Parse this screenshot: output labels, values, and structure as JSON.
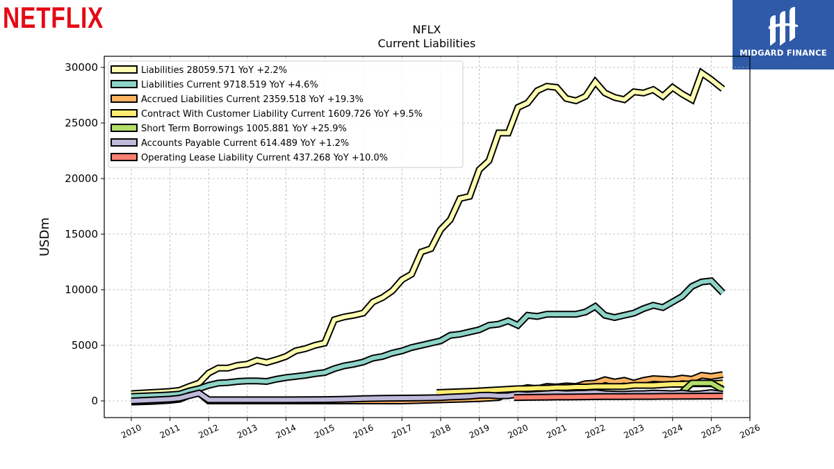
{
  "branding": {
    "company_logo_text": "NETFLIX",
    "publisher_logo_text": "MIDGARD FINANCE",
    "company_logo_color": "#e50914",
    "publisher_logo_bg": "#2f5aa8"
  },
  "chart_data": {
    "type": "area",
    "title": "NFLX",
    "subtitle": "Current  Liabilities",
    "ylabel": "USDm",
    "xlabel": "",
    "xlim": [
      2009.3,
      2026.0
    ],
    "ylim": [
      -1500,
      31000
    ],
    "x_ticks": [
      "2010",
      "2011",
      "2012",
      "2013",
      "2014",
      "2015",
      "2016",
      "2017",
      "2018",
      "2019",
      "2020",
      "2021",
      "2022",
      "2023",
      "2024",
      "2025",
      "2026"
    ],
    "y_ticks": [
      "0",
      "5000",
      "10000",
      "15000",
      "20000",
      "25000",
      "30000"
    ],
    "grid": true,
    "legend_position": "top-left",
    "series": [
      {
        "name": "Liabilities  28059.571 YoY +2.2%",
        "color": "#ffffb3",
        "points": [
          [
            2010.0,
            650
          ],
          [
            2010.5,
            750
          ],
          [
            2010.75,
            800
          ],
          [
            2011.0,
            850
          ],
          [
            2011.25,
            950
          ],
          [
            2011.5,
            1300
          ],
          [
            2011.75,
            1600
          ],
          [
            2012.0,
            2500
          ],
          [
            2012.25,
            2950
          ],
          [
            2012.5,
            2950
          ],
          [
            2012.75,
            3200
          ],
          [
            2013.0,
            3300
          ],
          [
            2013.25,
            3650
          ],
          [
            2013.5,
            3450
          ],
          [
            2013.75,
            3700
          ],
          [
            2014.0,
            4000
          ],
          [
            2014.25,
            4500
          ],
          [
            2014.5,
            4700
          ],
          [
            2014.75,
            5000
          ],
          [
            2015.0,
            5200
          ],
          [
            2015.25,
            7300
          ],
          [
            2015.5,
            7550
          ],
          [
            2015.75,
            7700
          ],
          [
            2016.0,
            7900
          ],
          [
            2016.25,
            8900
          ],
          [
            2016.5,
            9300
          ],
          [
            2016.75,
            9900
          ],
          [
            2017.0,
            10900
          ],
          [
            2017.25,
            11400
          ],
          [
            2017.5,
            13400
          ],
          [
            2017.75,
            13700
          ],
          [
            2018.0,
            15400
          ],
          [
            2018.25,
            16300
          ],
          [
            2018.5,
            18200
          ],
          [
            2018.75,
            18400
          ],
          [
            2019.0,
            20800
          ],
          [
            2019.25,
            21600
          ],
          [
            2019.5,
            24100
          ],
          [
            2019.75,
            24100
          ],
          [
            2020.0,
            26400
          ],
          [
            2020.25,
            26800
          ],
          [
            2020.5,
            27900
          ],
          [
            2020.75,
            28300
          ],
          [
            2021.0,
            28200
          ],
          [
            2021.25,
            27200
          ],
          [
            2021.5,
            27000
          ],
          [
            2021.75,
            27400
          ],
          [
            2022.0,
            28700
          ],
          [
            2022.25,
            27700
          ],
          [
            2022.5,
            27300
          ],
          [
            2022.75,
            27100
          ],
          [
            2023.0,
            27800
          ],
          [
            2023.25,
            27700
          ],
          [
            2023.5,
            28000
          ],
          [
            2023.75,
            27400
          ],
          [
            2024.0,
            28200
          ],
          [
            2024.25,
            27600
          ],
          [
            2024.5,
            27100
          ],
          [
            2024.75,
            29500
          ],
          [
            2025.0,
            28900
          ],
          [
            2025.3,
            28060
          ]
        ]
      },
      {
        "name": "Liabilities Current  9718.519 YoY +4.6%",
        "color": "#8dd3c7",
        "points": [
          [
            2010.0,
            400
          ],
          [
            2010.5,
            470
          ],
          [
            2010.75,
            500
          ],
          [
            2011.0,
            550
          ],
          [
            2011.25,
            620
          ],
          [
            2011.5,
            900
          ],
          [
            2011.75,
            1100
          ],
          [
            2012.0,
            1400
          ],
          [
            2012.25,
            1600
          ],
          [
            2012.5,
            1650
          ],
          [
            2012.75,
            1750
          ],
          [
            2013.0,
            1800
          ],
          [
            2013.25,
            1800
          ],
          [
            2013.5,
            1750
          ],
          [
            2013.75,
            1950
          ],
          [
            2014.0,
            2100
          ],
          [
            2014.25,
            2200
          ],
          [
            2014.5,
            2300
          ],
          [
            2014.75,
            2450
          ],
          [
            2015.0,
            2550
          ],
          [
            2015.25,
            2900
          ],
          [
            2015.5,
            3150
          ],
          [
            2015.75,
            3300
          ],
          [
            2016.0,
            3500
          ],
          [
            2016.25,
            3850
          ],
          [
            2016.5,
            4000
          ],
          [
            2016.75,
            4300
          ],
          [
            2017.0,
            4500
          ],
          [
            2017.25,
            4800
          ],
          [
            2017.5,
            5000
          ],
          [
            2017.75,
            5200
          ],
          [
            2018.0,
            5400
          ],
          [
            2018.25,
            5900
          ],
          [
            2018.5,
            6000
          ],
          [
            2018.75,
            6200
          ],
          [
            2019.0,
            6400
          ],
          [
            2019.25,
            6800
          ],
          [
            2019.5,
            6900
          ],
          [
            2019.75,
            7200
          ],
          [
            2020.0,
            6800
          ],
          [
            2020.25,
            7700
          ],
          [
            2020.5,
            7600
          ],
          [
            2020.75,
            7800
          ],
          [
            2021.0,
            7800
          ],
          [
            2021.25,
            7800
          ],
          [
            2021.5,
            7800
          ],
          [
            2021.75,
            8000
          ],
          [
            2022.0,
            8500
          ],
          [
            2022.25,
            7700
          ],
          [
            2022.5,
            7500
          ],
          [
            2022.75,
            7700
          ],
          [
            2023.0,
            7900
          ],
          [
            2023.25,
            8300
          ],
          [
            2023.5,
            8600
          ],
          [
            2023.75,
            8400
          ],
          [
            2024.0,
            8900
          ],
          [
            2024.25,
            9400
          ],
          [
            2024.5,
            10300
          ],
          [
            2024.75,
            10700
          ],
          [
            2025.0,
            10800
          ],
          [
            2025.3,
            9720
          ]
        ]
      },
      {
        "name": "Accrued Liabilities Current  2359.518 YoY +19.3%",
        "color": "#fdb462",
        "points": [
          [
            2010.0,
            -100
          ],
          [
            2010.5,
            -50
          ],
          [
            2010.75,
            0
          ],
          [
            2011.0,
            50
          ],
          [
            2011.25,
            150
          ],
          [
            2011.5,
            500
          ],
          [
            2011.75,
            700
          ],
          [
            2012.0,
            0
          ],
          [
            2012.5,
            0
          ],
          [
            2013.0,
            0
          ],
          [
            2013.5,
            0
          ],
          [
            2014.0,
            0
          ],
          [
            2014.5,
            0
          ],
          [
            2015.0,
            0
          ],
          [
            2015.5,
            0
          ],
          [
            2016.0,
            0
          ],
          [
            2016.5,
            0
          ],
          [
            2017.0,
            0
          ],
          [
            2017.5,
            50
          ],
          [
            2018.0,
            100
          ],
          [
            2018.5,
            150
          ],
          [
            2019.0,
            200
          ],
          [
            2019.25,
            250
          ],
          [
            2019.5,
            300
          ],
          [
            2019.75,
            700
          ],
          [
            2020.0,
            1000
          ],
          [
            2020.25,
            1200
          ],
          [
            2020.5,
            1100
          ],
          [
            2020.75,
            1300
          ],
          [
            2021.0,
            1250
          ],
          [
            2021.25,
            1350
          ],
          [
            2021.5,
            1300
          ],
          [
            2021.75,
            1550
          ],
          [
            2022.0,
            1600
          ],
          [
            2022.25,
            1900
          ],
          [
            2022.5,
            1700
          ],
          [
            2022.75,
            1850
          ],
          [
            2023.0,
            1600
          ],
          [
            2023.25,
            1850
          ],
          [
            2023.5,
            2000
          ],
          [
            2023.75,
            1950
          ],
          [
            2024.0,
            1900
          ],
          [
            2024.25,
            2050
          ],
          [
            2024.5,
            1950
          ],
          [
            2024.75,
            2300
          ],
          [
            2025.0,
            2200
          ],
          [
            2025.3,
            2360
          ]
        ]
      },
      {
        "name": "Contract With Customer Liability Current  1609.726 YoY +9.5%",
        "color": "#ffed6f",
        "points": [
          [
            2017.9,
            750
          ],
          [
            2018.25,
            800
          ],
          [
            2018.5,
            830
          ],
          [
            2018.75,
            860
          ],
          [
            2019.0,
            900
          ],
          [
            2019.25,
            950
          ],
          [
            2019.5,
            1000
          ],
          [
            2019.75,
            1050
          ],
          [
            2020.0,
            1100
          ],
          [
            2020.25,
            1100
          ],
          [
            2020.5,
            1150
          ],
          [
            2020.75,
            1150
          ],
          [
            2021.0,
            1200
          ],
          [
            2021.25,
            1200
          ],
          [
            2021.5,
            1250
          ],
          [
            2021.75,
            1250
          ],
          [
            2022.0,
            1300
          ],
          [
            2022.25,
            1300
          ],
          [
            2022.5,
            1300
          ],
          [
            2022.75,
            1300
          ],
          [
            2023.0,
            1400
          ],
          [
            2023.25,
            1400
          ],
          [
            2023.5,
            1400
          ],
          [
            2023.75,
            1450
          ],
          [
            2024.0,
            1500
          ],
          [
            2024.25,
            1500
          ],
          [
            2024.5,
            1550
          ],
          [
            2024.75,
            1550
          ],
          [
            2025.0,
            1550
          ],
          [
            2025.3,
            1610
          ]
        ]
      },
      {
        "name": "Short Term Borrowings  1005.881 YoY +25.9%",
        "color": "#b3de69",
        "points": [
          [
            2024.25,
            800
          ],
          [
            2024.5,
            1600
          ],
          [
            2024.75,
            1600
          ],
          [
            2025.0,
            1600
          ],
          [
            2025.3,
            1006
          ]
        ]
      },
      {
        "name": "Accounts Payable Current  614.489 YoY +1.2%",
        "color": "#bebada",
        "points": [
          [
            2010.0,
            0
          ],
          [
            2010.5,
            80
          ],
          [
            2010.75,
            120
          ],
          [
            2011.0,
            160
          ],
          [
            2011.25,
            250
          ],
          [
            2011.5,
            480
          ],
          [
            2011.75,
            700
          ],
          [
            2012.0,
            100
          ],
          [
            2012.5,
            100
          ],
          [
            2013.0,
            100
          ],
          [
            2013.5,
            100
          ],
          [
            2014.0,
            100
          ],
          [
            2014.5,
            110
          ],
          [
            2015.0,
            120
          ],
          [
            2015.5,
            150
          ],
          [
            2016.0,
            200
          ],
          [
            2016.5,
            230
          ],
          [
            2017.0,
            250
          ],
          [
            2017.5,
            270
          ],
          [
            2018.0,
            300
          ],
          [
            2018.25,
            350
          ],
          [
            2018.5,
            380
          ],
          [
            2018.75,
            420
          ],
          [
            2019.0,
            500
          ],
          [
            2019.25,
            520
          ],
          [
            2019.5,
            450
          ],
          [
            2019.75,
            470
          ],
          [
            2020.0,
            600
          ],
          [
            2020.25,
            550
          ],
          [
            2020.5,
            600
          ],
          [
            2020.75,
            650
          ],
          [
            2021.0,
            700
          ],
          [
            2021.25,
            650
          ],
          [
            2021.5,
            680
          ],
          [
            2021.75,
            700
          ],
          [
            2022.0,
            750
          ],
          [
            2022.25,
            650
          ],
          [
            2022.5,
            620
          ],
          [
            2022.75,
            600
          ],
          [
            2023.0,
            650
          ],
          [
            2023.25,
            650
          ],
          [
            2023.5,
            700
          ],
          [
            2023.75,
            680
          ],
          [
            2024.0,
            650
          ],
          [
            2024.25,
            700
          ],
          [
            2024.5,
            600
          ],
          [
            2024.75,
            650
          ],
          [
            2025.0,
            750
          ],
          [
            2025.3,
            615
          ]
        ]
      },
      {
        "name": "Operating Lease Liability Current  437.268 YoY +10.0%",
        "color": "#fb8072",
        "points": [
          [
            2019.9,
            300
          ],
          [
            2020.25,
            320
          ],
          [
            2020.5,
            330
          ],
          [
            2020.75,
            340
          ],
          [
            2021.0,
            350
          ],
          [
            2021.25,
            350
          ],
          [
            2021.5,
            360
          ],
          [
            2021.75,
            370
          ],
          [
            2022.0,
            380
          ],
          [
            2022.25,
            390
          ],
          [
            2022.5,
            390
          ],
          [
            2022.75,
            390
          ],
          [
            2023.0,
            400
          ],
          [
            2023.25,
            400
          ],
          [
            2023.5,
            400
          ],
          [
            2023.75,
            410
          ],
          [
            2024.0,
            410
          ],
          [
            2024.25,
            420
          ],
          [
            2024.5,
            420
          ],
          [
            2024.75,
            430
          ],
          [
            2025.0,
            430
          ],
          [
            2025.3,
            437
          ]
        ]
      }
    ]
  }
}
